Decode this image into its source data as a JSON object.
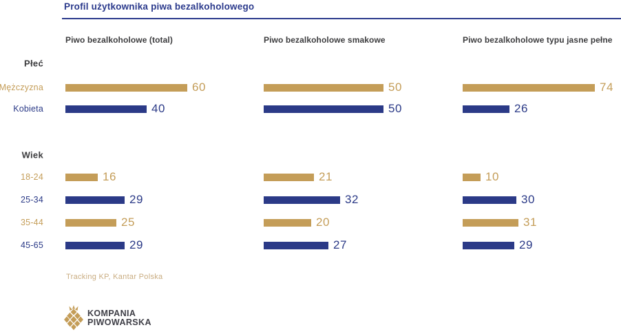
{
  "logo": {
    "line1": "KOMPANIA",
    "line2": "PIWOWARSKA"
  },
  "colors": {
    "gold": "#C49D58",
    "navy": "#2B3A87",
    "title": "#2B3A8C",
    "heading": "#3C3C3E",
    "source": "#C9AC80",
    "logo_text": "#3E3E46"
  },
  "chart_data": {
    "type": "bar",
    "orientation": "horizontal",
    "title": "Profil użytkownika piwa bezalkoholowego",
    "source": "Tracking KP, Kantar Polska",
    "value_labels": true,
    "axes_shown": false,
    "legend": "none",
    "sections": [
      {
        "label": "Płeć",
        "rows": [
          {
            "label": "Mężczyzna",
            "color": "gold"
          },
          {
            "label": "Kobieta",
            "color": "navy"
          }
        ]
      },
      {
        "label": "Wiek",
        "rows": [
          {
            "label": "18-24",
            "color": "gold"
          },
          {
            "label": "25-34",
            "color": "navy"
          },
          {
            "label": "35-44",
            "color": "gold"
          },
          {
            "label": "45-65",
            "color": "navy"
          }
        ]
      }
    ],
    "columns": [
      {
        "header": "Piwo bezalkoholowe (total)",
        "values": [
          60,
          40,
          16,
          29,
          25,
          29
        ]
      },
      {
        "header": "Piwo bezalkoholowe smakowe",
        "values": [
          50,
          50,
          21,
          32,
          20,
          27
        ]
      },
      {
        "header": "Piwo bezalkoholowe typu jasne pełne",
        "values": [
          74,
          26,
          10,
          30,
          31,
          29
        ]
      }
    ]
  }
}
